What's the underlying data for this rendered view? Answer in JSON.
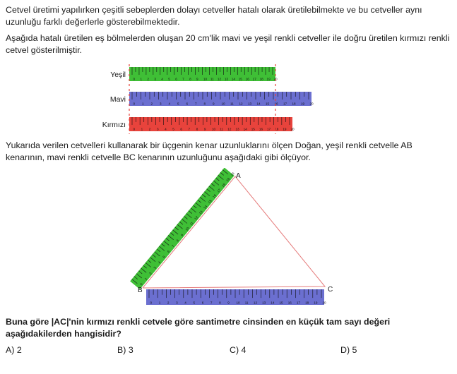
{
  "intro": "Cetvel üretimi yapılırken çeşitli sebeplerden dolayı cetveller hatalı olarak üretilebilmekte ve bu cetveller aynı uzunluğu farklı değerlerle gösterebilmektedir.",
  "ruler_intro": "Aşağıda hatalı üretilen eş bölmelerden oluşan 20 cm'lik mavi ve yeşil renkli cetveller ile doğru üretilen kırmızı renkli cetvel gösterilmiştir.",
  "rulers": [
    {
      "label": "Yeşil",
      "color": "#3fbf36",
      "tick_count": 20
    },
    {
      "label": "Mavi",
      "color": "#6b6fd0",
      "tick_count": 20
    },
    {
      "label": "Kırmızı",
      "color": "#e8433c",
      "tick_count": 20
    }
  ],
  "measurement_text": "Yukarıda verilen cetvelleri kullanarak bir üçgenin kenar uzunluklarını ölçen Doğan, yeşil renkli cetvelle AB kenarının, mavi renkli cetvelle BC kenarının uzunluğunu aşağıdaki gibi ölçüyor.",
  "triangle": {
    "vertices": [
      "A",
      "B",
      "C"
    ],
    "line_color": "#e57b7b",
    "ab_ruler_color": "#3fbf36",
    "bc_ruler_color": "#6b6fd0"
  },
  "question": "Buna göre |AC|'nin kırmızı renkli cetvele göre santimetre cinsinden en küçük tam sayı değeri aşağıdakilerden hangisidir?",
  "options": [
    "A) 2",
    "B) 3",
    "C) 4",
    "D) 5"
  ]
}
